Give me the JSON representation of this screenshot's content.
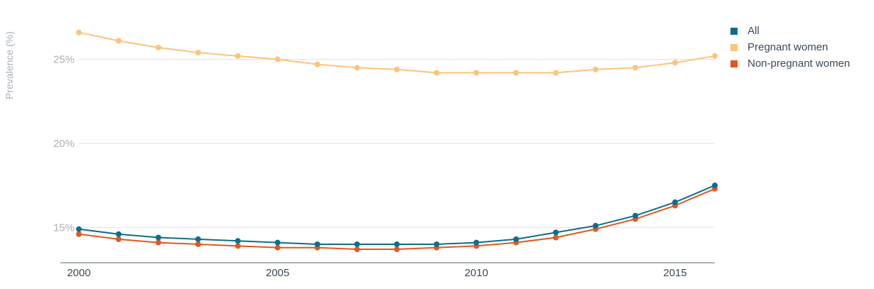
{
  "chart_data": {
    "type": "line",
    "title": "",
    "xlabel": "",
    "ylabel": "Prevalence (%)",
    "x": [
      2000,
      2001,
      2002,
      2003,
      2004,
      2005,
      2006,
      2007,
      2008,
      2009,
      2010,
      2011,
      2012,
      2013,
      2014,
      2015,
      2016
    ],
    "xlim": [
      2000,
      2016
    ],
    "ylim": [
      12.9,
      27.6
    ],
    "x_ticks": [
      2000,
      2005,
      2010,
      2015
    ],
    "y_ticks": [
      15,
      20,
      25
    ],
    "y_tick_labels": [
      "15%",
      "20%",
      "25%"
    ],
    "grid": "horizontal",
    "legend_position": "top-right",
    "series": [
      {
        "name": "All",
        "color": "#0e6e8b",
        "values": [
          14.9,
          14.6,
          14.4,
          14.3,
          14.2,
          14.1,
          14.0,
          14.0,
          14.0,
          14.0,
          14.1,
          14.3,
          14.7,
          15.1,
          15.7,
          16.5,
          17.5
        ]
      },
      {
        "name": "Pregnant women",
        "color": "#fdc47b",
        "values": [
          26.6,
          26.1,
          25.7,
          25.4,
          25.2,
          25.0,
          24.7,
          24.5,
          24.4,
          24.2,
          24.2,
          24.2,
          24.2,
          24.4,
          24.5,
          24.8,
          25.2
        ]
      },
      {
        "name": "Non-pregnant women",
        "color": "#e2581f",
        "values": [
          14.6,
          14.3,
          14.1,
          14.0,
          13.9,
          13.8,
          13.8,
          13.7,
          13.7,
          13.8,
          13.9,
          14.1,
          14.4,
          14.9,
          15.5,
          16.3,
          17.3
        ]
      }
    ]
  }
}
